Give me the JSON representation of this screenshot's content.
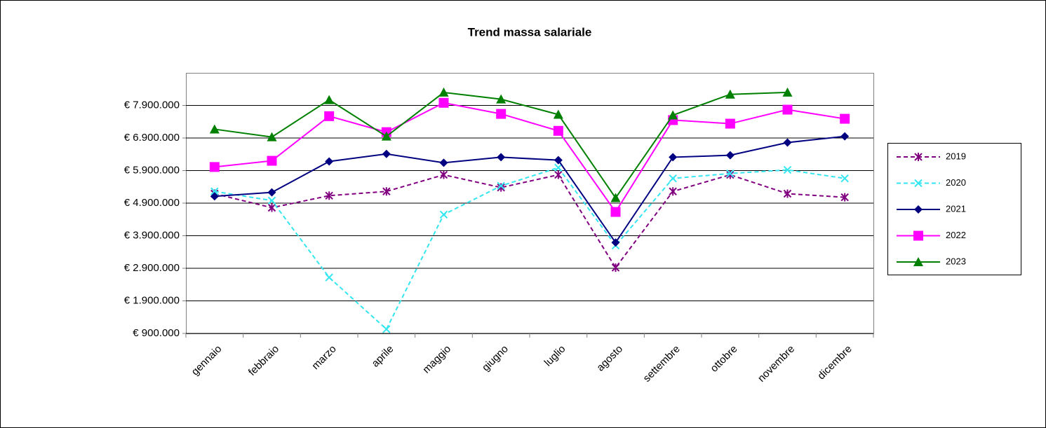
{
  "chart_data": {
    "type": "line",
    "title": "Trend massa salariale",
    "categories": [
      "gennaio",
      "febbraio",
      "marzo",
      "aprile",
      "maggio",
      "giugno",
      "luglio",
      "agosto",
      "settembre",
      "ottobre",
      "novembre",
      "dicembre"
    ],
    "ylim": [
      900000,
      8900000
    ],
    "yticks": [
      {
        "value": 900000,
        "label": "€ 900.000"
      },
      {
        "value": 1900000,
        "label": "€ 1.900.000"
      },
      {
        "value": 2900000,
        "label": "€ 2.900.000"
      },
      {
        "value": 3900000,
        "label": "€ 3.900.000"
      },
      {
        "value": 4900000,
        "label": "€ 4.900.000"
      },
      {
        "value": 5900000,
        "label": "€ 5.900.000"
      },
      {
        "value": 6900000,
        "label": "€ 6.900.000"
      },
      {
        "value": 7900000,
        "label": "€ 7.900.000"
      }
    ],
    "grid": true,
    "legend": "right",
    "series": [
      {
        "name": "2019",
        "color": "#800080",
        "dash": true,
        "marker": "asterisk",
        "values": [
          5190000,
          4760000,
          5130000,
          5260000,
          5770000,
          5380000,
          5770000,
          2920000,
          5260000,
          5770000,
          5190000,
          5080000
        ]
      },
      {
        "name": "2020",
        "color": "#33e6f0",
        "dash": true,
        "marker": "cross",
        "values": [
          5260000,
          4980000,
          2620000,
          1030000,
          4550000,
          5430000,
          5990000,
          3600000,
          5660000,
          5810000,
          5920000,
          5660000
        ]
      },
      {
        "name": "2021",
        "color": "#000080",
        "dash": false,
        "marker": "diamond",
        "values": [
          5110000,
          5230000,
          6180000,
          6410000,
          6140000,
          6310000,
          6220000,
          3690000,
          6310000,
          6370000,
          6760000,
          6950000
        ]
      },
      {
        "name": "2022",
        "color": "#ff00ff",
        "dash": false,
        "marker": "square",
        "values": [
          6010000,
          6200000,
          7570000,
          7080000,
          7980000,
          7640000,
          7120000,
          4630000,
          7450000,
          7340000,
          7770000,
          7490000
        ]
      },
      {
        "name": "2023",
        "color": "#008000",
        "dash": false,
        "marker": "triangle",
        "values": [
          7170000,
          6930000,
          8070000,
          6950000,
          8300000,
          8090000,
          7620000,
          5060000,
          7600000,
          8240000,
          8300000,
          null
        ]
      }
    ]
  }
}
